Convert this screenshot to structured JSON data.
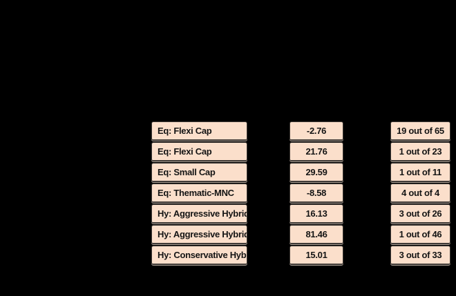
{
  "page": {
    "background_color": "#000000",
    "cell_fill_color": "#fbdfcb",
    "cell_border_color": "#3f3a36",
    "cell_shadow_color": "#a99d93",
    "text_color": "#141414"
  },
  "chart_data": {
    "type": "table",
    "columns": [
      "category",
      "value",
      "rank"
    ],
    "legend_position": "none",
    "grid": false,
    "rows": [
      {
        "category": "Eq: Flexi Cap",
        "value": "-2.76",
        "rank": "19 out of 65"
      },
      {
        "category": "Eq: Flexi Cap",
        "value": "21.76",
        "rank": "1 out of 23"
      },
      {
        "category": "Eq: Small Cap",
        "value": "29.59",
        "rank": "1 out of 11"
      },
      {
        "category": "Eq: Thematic-MNC",
        "value": "-8.58",
        "rank": "4 out of 4"
      },
      {
        "category": "Hy: Aggressive Hybrid",
        "value": "16.13",
        "rank": "3 out of 26"
      },
      {
        "category": "Hy: Aggressive Hybrid",
        "value": "81.46",
        "rank": "1 out of 46"
      },
      {
        "category": "Hy: Conservative Hybrid",
        "value": "15.01",
        "rank": "3 out of 33"
      }
    ]
  }
}
